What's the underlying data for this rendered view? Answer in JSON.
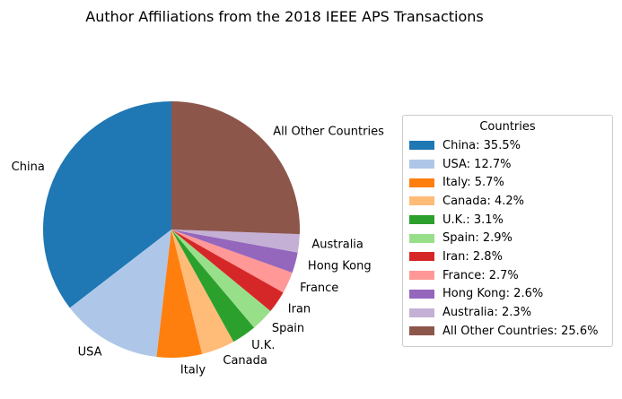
{
  "chart_data": {
    "type": "pie",
    "title": "Author Affiliations from the 2018 IEEE APS Transactions",
    "legend": {
      "title": "Countries",
      "placement": "right"
    },
    "start_angle_deg": 90,
    "direction": "counterclockwise",
    "slices": [
      {
        "label": "China",
        "value": 35.5,
        "legend_label": "China: 35.5%",
        "color": "#1f77b4"
      },
      {
        "label": "USA",
        "value": 12.7,
        "legend_label": "USA: 12.7%",
        "color": "#aec7e8"
      },
      {
        "label": "Italy",
        "value": 5.7,
        "legend_label": "Italy: 5.7%",
        "color": "#ff7f0e"
      },
      {
        "label": "Canada",
        "value": 4.2,
        "legend_label": "Canada: 4.2%",
        "color": "#ffbb78"
      },
      {
        "label": "U.K.",
        "value": 3.1,
        "legend_label": "U.K.: 3.1%",
        "color": "#2ca02c"
      },
      {
        "label": "Spain",
        "value": 2.9,
        "legend_label": "Spain: 2.9%",
        "color": "#98df8a"
      },
      {
        "label": "Iran",
        "value": 2.8,
        "legend_label": "Iran: 2.8%",
        "color": "#d62728"
      },
      {
        "label": "France",
        "value": 2.7,
        "legend_label": "France: 2.7%",
        "color": "#ff9896"
      },
      {
        "label": "Hong Kong",
        "value": 2.6,
        "legend_label": "Hong Kong: 2.6%",
        "color": "#9467bd"
      },
      {
        "label": "Australia",
        "value": 2.3,
        "legend_label": "Australia: 2.3%",
        "color": "#c5b0d5"
      },
      {
        "label": "All Other Countries",
        "value": 25.6,
        "legend_label": "All Other Countries: 25.6%",
        "color": "#8c564b"
      }
    ]
  }
}
